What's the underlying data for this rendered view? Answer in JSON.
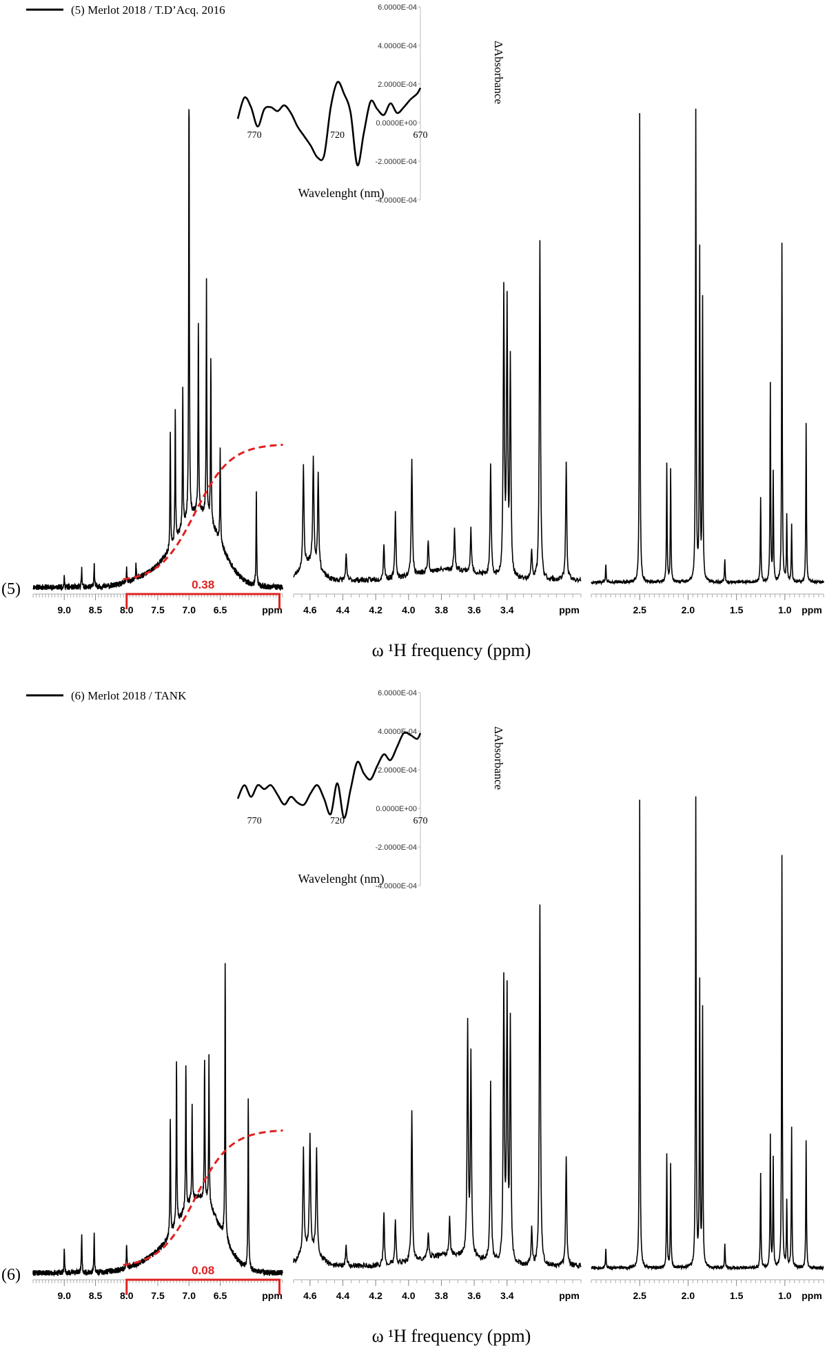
{
  "chart_data": [
    {
      "type": "line",
      "panel_label": "(5)",
      "legend": "(5) Merlot 2018 / T.D’Acq. 2016",
      "xlabel": "ω ¹H frequency (ppm)",
      "x_unit_label": "ppm",
      "aromatic_region": {
        "xlim": [
          9.5,
          5.5
        ],
        "ticks": [
          "9.0",
          "8.5",
          "8.0",
          "7.5",
          "7.0",
          "6.5"
        ],
        "peaks": [
          [
            9.0,
            0.02
          ],
          [
            8.72,
            0.04
          ],
          [
            8.52,
            0.05
          ],
          [
            8.0,
            0.03
          ],
          [
            7.85,
            0.03
          ],
          [
            7.3,
            0.25
          ],
          [
            7.22,
            0.28
          ],
          [
            7.1,
            0.3
          ],
          [
            7.0,
            1.0
          ],
          [
            6.85,
            0.4
          ],
          [
            6.72,
            0.5
          ],
          [
            6.65,
            0.35
          ],
          [
            6.5,
            0.2
          ],
          [
            5.92,
            0.2
          ]
        ],
        "integral_range": [
          8.0,
          5.55
        ],
        "integral_value": "0.38"
      },
      "mid_region": {
        "xlim": [
          4.7,
          2.95
        ],
        "ticks": [
          "4.6",
          "4.4",
          "4.2",
          "4.0",
          "3.8",
          "3.6",
          "3.4"
        ],
        "peaks": [
          [
            4.64,
            0.28
          ],
          [
            4.58,
            0.3
          ],
          [
            4.55,
            0.27
          ],
          [
            4.38,
            0.07
          ],
          [
            4.15,
            0.1
          ],
          [
            4.08,
            0.18
          ],
          [
            3.98,
            0.33
          ],
          [
            3.88,
            0.09
          ],
          [
            3.72,
            0.11
          ],
          [
            3.62,
            0.12
          ],
          [
            3.5,
            0.31
          ],
          [
            3.42,
            0.79
          ],
          [
            3.4,
            0.75
          ],
          [
            3.38,
            0.6
          ],
          [
            3.25,
            0.08
          ],
          [
            3.2,
            0.95
          ],
          [
            3.04,
            0.33
          ]
        ]
      },
      "aliphatic_region": {
        "xlim": [
          3.0,
          0.6
        ],
        "ticks": [
          "2.5",
          "2.0",
          "1.5",
          "1.0"
        ],
        "peaks": [
          [
            2.85,
            0.04
          ],
          [
            2.5,
            1.0
          ],
          [
            2.22,
            0.25
          ],
          [
            2.18,
            0.24
          ],
          [
            1.92,
            1.0
          ],
          [
            1.88,
            0.7
          ],
          [
            1.85,
            0.6
          ],
          [
            1.62,
            0.05
          ],
          [
            1.25,
            0.18
          ],
          [
            1.15,
            0.42
          ],
          [
            1.12,
            0.23
          ],
          [
            1.03,
            0.72
          ],
          [
            0.98,
            0.14
          ],
          [
            0.93,
            0.12
          ],
          [
            0.78,
            0.34
          ]
        ]
      },
      "inset": {
        "xlabel": "Wavelenght  (nm)",
        "ylabel": "ΔAbsorbance",
        "xlim": [
          780,
          670
        ],
        "ylim": [
          -0.0004,
          0.0006
        ],
        "x_ticks": [
          "770",
          "720",
          "670"
        ],
        "y_ticks": [
          "6.0000E-04",
          "4.0000E-04",
          "2.0000E-04",
          "0.0000E+00",
          "-2.0000E-04",
          "-4.0000E-04"
        ],
        "x": [
          780,
          776,
          772,
          768,
          764,
          760,
          756,
          752,
          748,
          744,
          740,
          736,
          732,
          728,
          724,
          720,
          716,
          712,
          708,
          704,
          700,
          696,
          692,
          688,
          684,
          680,
          676,
          672,
          670
        ],
        "y": [
          2e-05,
          0.00013,
          8e-05,
          -2e-05,
          7e-05,
          8e-05,
          6e-05,
          9e-05,
          5e-05,
          -2e-05,
          -7e-05,
          -0.00012,
          -0.00018,
          -0.00017,
          8e-05,
          0.00021,
          0.00015,
          5e-05,
          -0.00022,
          -5e-05,
          0.00011,
          7e-05,
          4e-05,
          0.0001,
          5e-05,
          8e-05,
          0.00012,
          0.00015,
          0.00018
        ]
      }
    },
    {
      "type": "line",
      "panel_label": "(6)",
      "legend": "(6) Merlot 2018 / TANK",
      "xlabel": "ω ¹H frequency (ppm)",
      "x_unit_label": "ppm",
      "aromatic_region": {
        "xlim": [
          9.5,
          5.5
        ],
        "ticks": [
          "9.0",
          "8.5",
          "8.0",
          "7.5",
          "7.0",
          "6.5"
        ],
        "peaks": [
          [
            9.0,
            0.05
          ],
          [
            8.72,
            0.08
          ],
          [
            8.52,
            0.08
          ],
          [
            8.0,
            0.05
          ],
          [
            7.3,
            0.25
          ],
          [
            7.2,
            0.35
          ],
          [
            7.05,
            0.31
          ],
          [
            6.95,
            0.2
          ],
          [
            6.75,
            0.3
          ],
          [
            6.68,
            0.32
          ],
          [
            6.42,
            0.59
          ],
          [
            6.05,
            0.36
          ]
        ],
        "integral_range": [
          8.0,
          5.55
        ],
        "integral_value": "0.08"
      },
      "mid_region": {
        "xlim": [
          4.7,
          2.95
        ],
        "ticks": [
          "4.6",
          "4.4",
          "4.2",
          "4.0",
          "3.8",
          "3.6",
          "3.4"
        ],
        "peaks": [
          [
            4.64,
            0.29
          ],
          [
            4.6,
            0.32
          ],
          [
            4.56,
            0.29
          ],
          [
            4.38,
            0.06
          ],
          [
            4.15,
            0.14
          ],
          [
            4.08,
            0.12
          ],
          [
            3.98,
            0.42
          ],
          [
            3.88,
            0.07
          ],
          [
            3.75,
            0.11
          ],
          [
            3.64,
            0.65
          ],
          [
            3.62,
            0.56
          ],
          [
            3.5,
            0.5
          ],
          [
            3.42,
            0.78
          ],
          [
            3.4,
            0.74
          ],
          [
            3.38,
            0.66
          ],
          [
            3.25,
            0.1
          ],
          [
            3.2,
            1.0
          ],
          [
            3.04,
            0.3
          ]
        ]
      },
      "aliphatic_region": {
        "xlim": [
          3.0,
          0.6
        ],
        "ticks": [
          "2.5",
          "2.0",
          "1.5",
          "1.0"
        ],
        "peaks": [
          [
            2.85,
            0.04
          ],
          [
            2.5,
            1.0
          ],
          [
            2.22,
            0.24
          ],
          [
            2.18,
            0.22
          ],
          [
            1.92,
            1.0
          ],
          [
            1.88,
            0.6
          ],
          [
            1.85,
            0.55
          ],
          [
            1.62,
            0.05
          ],
          [
            1.25,
            0.2
          ],
          [
            1.15,
            0.28
          ],
          [
            1.12,
            0.23
          ],
          [
            1.03,
            0.88
          ],
          [
            0.98,
            0.14
          ],
          [
            0.93,
            0.3
          ],
          [
            0.78,
            0.27
          ]
        ]
      },
      "inset": {
        "xlabel": "Wavelenght  (nm)",
        "ylabel": "ΔAbsorbance",
        "xlim": [
          780,
          670
        ],
        "ylim": [
          -0.0004,
          0.0006
        ],
        "x_ticks": [
          "770",
          "720",
          "670"
        ],
        "y_ticks": [
          "6.0000E-04",
          "4.0000E-04",
          "2.0000E-04",
          "0.0000E+00",
          "-2.0000E-04",
          "-4.0000E-04"
        ],
        "x": [
          780,
          776,
          772,
          768,
          764,
          760,
          756,
          752,
          748,
          744,
          740,
          736,
          732,
          728,
          724,
          720,
          716,
          712,
          708,
          704,
          700,
          696,
          692,
          688,
          684,
          680,
          676,
          672,
          670
        ],
        "y": [
          5e-05,
          0.00012,
          6e-05,
          0.00012,
          0.0001,
          0.00012,
          7e-05,
          2e-05,
          6e-05,
          3e-05,
          2e-05,
          8e-05,
          0.00012,
          5e-05,
          -3e-05,
          0.00013,
          -5e-05,
          0.0001,
          0.00024,
          0.00018,
          0.00015,
          0.00022,
          0.00028,
          0.00025,
          0.00032,
          0.00039,
          0.00038,
          0.00036,
          0.00039
        ]
      }
    }
  ]
}
